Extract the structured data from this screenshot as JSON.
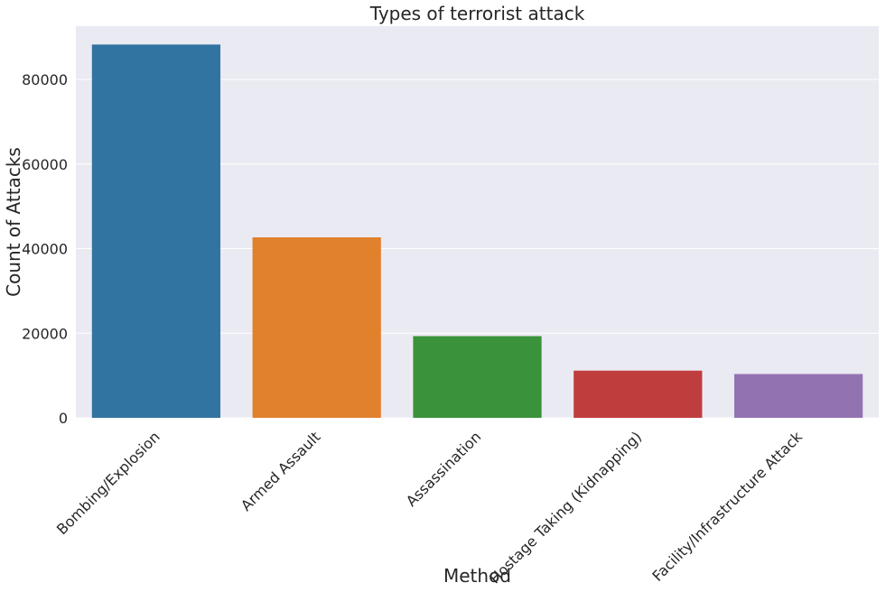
{
  "chart_data": {
    "type": "bar",
    "title": "Types of terrorist attack",
    "xlabel": "Method",
    "ylabel": "Count of Attacks",
    "categories": [
      "Bombing/Explosion",
      "Armed Assault",
      "Assassination",
      "Hostage Taking (Kidnapping)",
      "Facility/Infrastructure Attack"
    ],
    "values": [
      88255,
      42669,
      19312,
      11158,
      10356
    ],
    "colors": [
      "#3274a1",
      "#e1812c",
      "#3a923a",
      "#c03d3e",
      "#9372b2"
    ],
    "ylim": [
      0,
      92600
    ],
    "yticks": [
      0,
      20000,
      40000,
      60000,
      80000
    ],
    "grid": true,
    "background": "#eaeaf2",
    "gridline_color": "#ffffff"
  }
}
